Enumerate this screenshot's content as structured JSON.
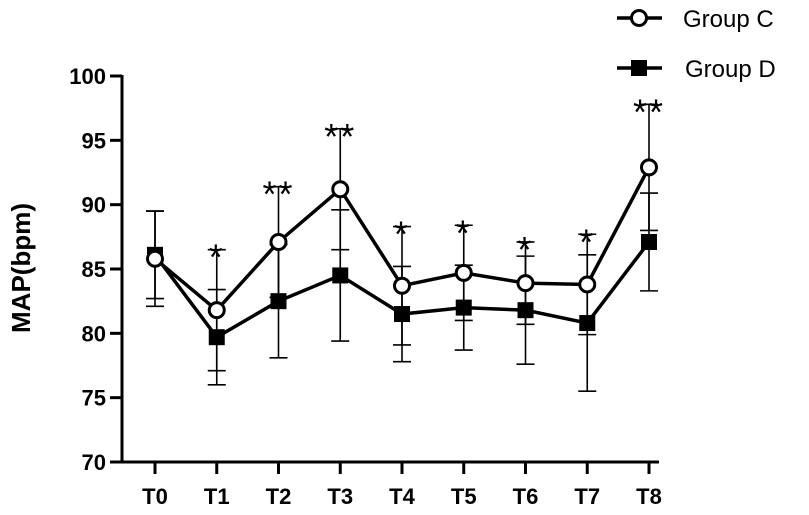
{
  "chart_data": {
    "type": "line",
    "title": "",
    "xlabel": "",
    "ylabel": "MAP(bpm)",
    "categories": [
      "T0",
      "T1",
      "T2",
      "T3",
      "T4",
      "T5",
      "T6",
      "T7",
      "T8"
    ],
    "ylim": [
      70,
      100
    ],
    "yticks": [
      70,
      75,
      80,
      85,
      90,
      95,
      100
    ],
    "grid": false,
    "legend_position": "top-right",
    "series": [
      {
        "name": "Group C",
        "marker": "open-circle",
        "values": [
          85.8,
          81.8,
          87.1,
          91.2,
          83.7,
          84.7,
          83.9,
          83.8,
          92.9
        ],
        "error": [
          3.7,
          4.7,
          4.3,
          4.7,
          4.6,
          3.7,
          3.2,
          3.9,
          4.9
        ]
      },
      {
        "name": "Group D",
        "marker": "filled-square",
        "values": [
          86.1,
          79.7,
          82.5,
          84.5,
          81.5,
          82.0,
          81.8,
          80.8,
          87.1
        ],
        "error": [
          3.4,
          3.7,
          4.4,
          5.1,
          3.7,
          3.3,
          4.2,
          5.3,
          3.8
        ]
      }
    ],
    "annotations": [
      "",
      "*",
      "**",
      "**",
      "*",
      "*",
      "*",
      "*",
      "**"
    ]
  }
}
